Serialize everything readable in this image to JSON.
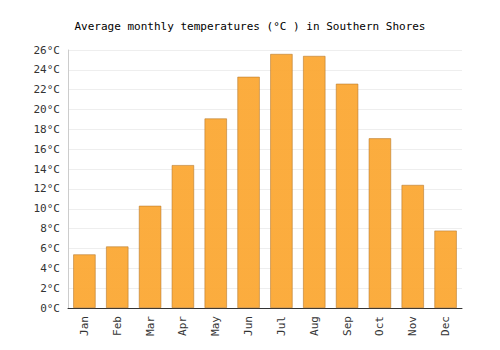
{
  "chart_data": {
    "type": "bar",
    "title": "Average monthly temperatures (°C ) in Southern Shores",
    "categories": [
      "Jan",
      "Feb",
      "Mar",
      "Apr",
      "May",
      "Jun",
      "Jul",
      "Aug",
      "Sep",
      "Oct",
      "Nov",
      "Dec"
    ],
    "values": [
      5.4,
      6.2,
      10.3,
      14.4,
      19.1,
      23.3,
      25.6,
      25.4,
      22.6,
      17.1,
      12.4,
      7.8
    ],
    "color": "#fba834",
    "ylim": [
      0,
      26
    ],
    "yticks": [
      {
        "value": 0,
        "label": "0°C"
      },
      {
        "value": 2,
        "label": "2°C"
      },
      {
        "value": 4,
        "label": "4°C"
      },
      {
        "value": 6,
        "label": "6°C"
      },
      {
        "value": 8,
        "label": "8°C"
      },
      {
        "value": 10,
        "label": "10°C"
      },
      {
        "value": 12,
        "label": "12°C"
      },
      {
        "value": 14,
        "label": "14°C"
      },
      {
        "value": 16,
        "label": "16°C"
      },
      {
        "value": 18,
        "label": "18°C"
      },
      {
        "value": 20,
        "label": "20°C"
      },
      {
        "value": 22,
        "label": "22°C"
      },
      {
        "value": 24,
        "label": "24°C"
      },
      {
        "value": 26,
        "label": "26°C"
      }
    ],
    "grid": true
  }
}
